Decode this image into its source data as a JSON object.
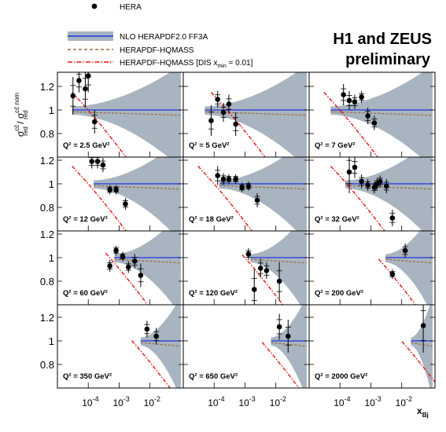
{
  "header": {
    "title_line1": "H1 and ZEUS",
    "title_line2": "preliminary"
  },
  "legend": {
    "hera": "HERA",
    "nlo": "NLO HERAPDF2.0 FF3A",
    "hqmass": "HERAPDF-HQMASS",
    "dismin_main": "HERAPDF-HQMASS [DIS x",
    "dismin_sub": "min",
    "dismin_tail": " = 0.01]"
  },
  "axes": {
    "ylabel_sigma1": "σ",
    "ylabel_sup1": "cc̄",
    "ylabel_sub1": "red",
    "ylabel_slash": " / σ",
    "ylabel_sup2": "cc̄ nom",
    "ylabel_sub2": "red",
    "xlabel_main": "x",
    "xlabel_sub": "Bj",
    "yticks": [
      "1.2",
      "1",
      "0.8"
    ],
    "xticks_base": "10",
    "xticks_exp": [
      "-4",
      "-3",
      "-2"
    ]
  },
  "colors": {
    "band": "#a8b4c0",
    "central": "#2233dd",
    "hqmass": "#9b6a3a",
    "dismin": "#ee1111"
  },
  "chart_data": {
    "type": "scatter",
    "xscale": "log",
    "xlim": [
      1e-05,
      0.12
    ],
    "ylim": [
      0.6,
      1.32
    ],
    "grid": false,
    "legend_position": "top-left",
    "panels": [
      {
        "q2": "Q² = 2.5 GeV²",
        "xmin": 3e-05,
        "xmax": 0.1,
        "cut_x": 0.0003,
        "points": [
          [
            3.2e-05,
            1.12,
            0.16
          ],
          [
            5e-05,
            1.25,
            0.1
          ],
          [
            8e-05,
            1.18,
            0.16
          ],
          [
            0.0001,
            1.29,
            0.14
          ],
          [
            0.00016,
            0.9,
            0.1
          ]
        ]
      },
      {
        "q2": "Q² = 5 GeV²",
        "xmin": 5e-05,
        "xmax": 0.1,
        "cut_x": 0.0008,
        "points": [
          [
            8e-05,
            0.91,
            0.13
          ],
          [
            0.00013,
            1.09,
            0.07
          ],
          [
            0.0002,
            0.98,
            0.08
          ],
          [
            0.0003,
            1.05,
            0.08
          ],
          [
            0.0005,
            0.88,
            0.1
          ]
        ]
      },
      {
        "q2": "Q² = 7 GeV²",
        "xmin": 5e-05,
        "xmax": 0.1,
        "cut_x": 0.0003,
        "points": [
          [
            0.00013,
            1.13,
            0.09
          ],
          [
            0.0002,
            1.08,
            0.08
          ],
          [
            0.0003,
            1.07,
            0.06
          ],
          [
            0.0005,
            1.11,
            0.05
          ],
          [
            0.0008,
            0.95,
            0.07
          ],
          [
            0.0013,
            0.89,
            0.06
          ]
        ]
      },
      {
        "q2": "Q² = 12 GeV²",
        "xmin": 0.00015,
        "xmax": 0.1,
        "cut_x": 0.0003,
        "points": [
          [
            0.00013,
            1.19,
            0.06
          ],
          [
            0.0002,
            1.19,
            0.06
          ],
          [
            0.0003,
            1.16,
            0.06
          ],
          [
            0.0005,
            0.95,
            0.04
          ],
          [
            0.0008,
            0.95,
            0.04
          ],
          [
            0.0016,
            0.83,
            0.05
          ]
        ]
      },
      {
        "q2": "Q² = 18 GeV²",
        "xmin": 0.00015,
        "xmax": 0.1,
        "cut_x": 0.0003,
        "points": [
          [
            0.00013,
            1.07,
            0.08
          ],
          [
            0.0002,
            1.04,
            0.05
          ],
          [
            0.0003,
            1.04,
            0.04
          ],
          [
            0.0005,
            1.04,
            0.04
          ],
          [
            0.0008,
            0.97,
            0.04
          ],
          [
            0.0013,
            0.98,
            0.04
          ],
          [
            0.0025,
            0.86,
            0.06
          ]
        ]
      },
      {
        "q2": "Q² = 32 GeV²",
        "xmin": 0.00015,
        "xmax": 0.1,
        "cut_x": 0.0005,
        "points": [
          [
            0.0002,
            1.1,
            0.18
          ],
          [
            0.0003,
            1.14,
            0.09
          ],
          [
            0.0005,
            1.02,
            0.06
          ],
          [
            0.0008,
            0.99,
            0.05
          ],
          [
            0.0013,
            0.97,
            0.05
          ],
          [
            0.0016,
            1.0,
            0.05
          ],
          [
            0.002,
            1.02,
            0.05
          ],
          [
            0.0032,
            0.98,
            0.06
          ],
          [
            0.005,
            0.71,
            0.07
          ]
        ]
      },
      {
        "q2": "Q² = 60 GeV²",
        "xmin": 0.0007,
        "xmax": 0.1,
        "cut_x": 0.0015,
        "points": [
          [
            0.0005,
            0.93,
            0.05
          ],
          [
            0.0008,
            1.06,
            0.04
          ],
          [
            0.0013,
            1.01,
            0.04
          ],
          [
            0.002,
            0.92,
            0.05
          ],
          [
            0.0032,
            0.97,
            0.06
          ],
          [
            0.005,
            0.85,
            0.1
          ]
        ]
      },
      {
        "q2": "Q² = 120 GeV²",
        "xmin": 0.0015,
        "xmax": 0.1,
        "cut_x": 0.003,
        "points": [
          [
            0.0013,
            1.03,
            0.05
          ],
          [
            0.002,
            0.73,
            0.17
          ],
          [
            0.0032,
            0.91,
            0.08
          ],
          [
            0.005,
            0.89,
            0.07
          ],
          [
            0.013,
            0.8,
            0.16
          ]
        ]
      },
      {
        "q2": "Q² = 200 GeV²",
        "xmin": 0.003,
        "xmax": 0.1,
        "cut_x": 0.005,
        "points": [
          [
            0.005,
            0.86,
            0.04
          ],
          [
            0.013,
            1.06,
            0.06
          ]
        ]
      },
      {
        "q2": "Q² = 350 GeV²",
        "xmin": 0.005,
        "xmax": 0.1,
        "cut_x": 0.008,
        "points": [
          [
            0.008,
            1.1,
            0.07
          ],
          [
            0.016,
            1.04,
            0.07
          ]
        ]
      },
      {
        "q2": "Q² = 650 GeV²",
        "xmin": 0.007,
        "xmax": 0.1,
        "cut_x": 0.01,
        "points": [
          [
            0.013,
            1.12,
            0.11
          ],
          [
            0.025,
            1.04,
            0.14
          ]
        ]
      },
      {
        "q2": "Q² = 2000 GeV²",
        "xmin": 0.02,
        "xmax": 0.1,
        "cut_x": 0.03,
        "points": [
          [
            0.05,
            1.13,
            0.23
          ]
        ]
      }
    ]
  }
}
